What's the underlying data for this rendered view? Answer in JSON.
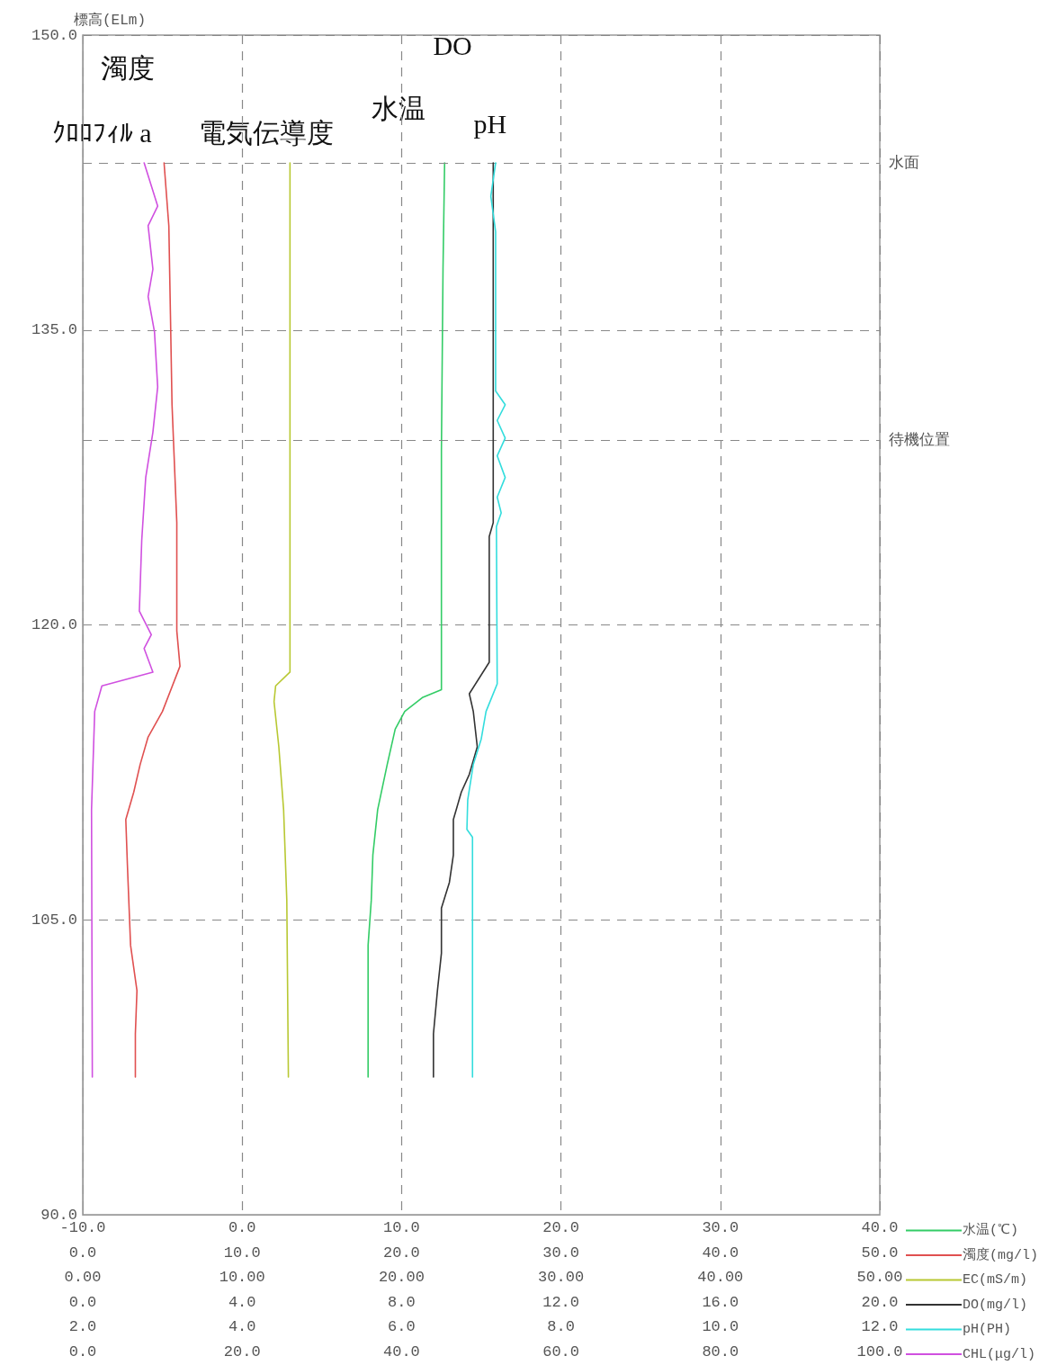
{
  "chart_data": [
    {
      "type": "line",
      "ylabel": "標高(ELm)",
      "ylim": [
        90,
        150
      ],
      "yticks": [
        {
          "value": 90,
          "label": "90.0"
        },
        {
          "value": 105,
          "label": "105.0"
        },
        {
          "value": 120,
          "label": "120.0"
        },
        {
          "value": 135,
          "label": "135.0"
        },
        {
          "value": 150,
          "label": "150.0"
        }
      ],
      "xlim": [
        -10,
        40
      ],
      "xticks": [
        {
          "value": -10,
          "label": "-10.0"
        },
        {
          "value": 0,
          "label": "0.0"
        },
        {
          "value": 10,
          "label": "10.0"
        },
        {
          "value": 20,
          "label": "20.0"
        },
        {
          "value": 30,
          "label": "30.0"
        },
        {
          "value": 40,
          "label": "40.0"
        }
      ],
      "grid": true,
      "legend": "bottom right",
      "ref_lines": [
        {
          "axis": "y",
          "value": 143.5,
          "label": "水面",
          "line_style": "dashed"
        },
        {
          "axis": "y",
          "value": 129.4,
          "label": "待機位置",
          "line_style": "dashed"
        }
      ],
      "annotations": [
        "濁度",
        "DO",
        "ｸﾛﾛﾌｨﾙ a",
        "電気伝導度",
        "水温",
        "pH"
      ],
      "series": [
        {
          "name": "水温(℃)",
          "color": "#33cc66",
          "x": [
            12.7,
            12.6,
            12.5,
            12.5,
            12.5,
            11.3,
            10.2,
            9.6,
            9.1,
            8.5,
            8.2,
            8.1,
            7.9,
            7.9
          ],
          "values": [
            143.5,
            138.1,
            128.9,
            119.7,
            116.7,
            116.3,
            115.6,
            114.7,
            112.9,
            110.6,
            108.3,
            106.0,
            103.7,
            97.0
          ]
        }
      ]
    },
    {
      "type": "line",
      "ylim": [
        90,
        150
      ],
      "tick_labels": "x",
      "legend": "bottom right",
      "xlim": [
        0,
        50
      ],
      "xticks": [
        {
          "value": 0,
          "label": "0.0"
        },
        {
          "value": 10,
          "label": "10.0"
        },
        {
          "value": 20,
          "label": "20.0"
        },
        {
          "value": 30,
          "label": "30.0"
        },
        {
          "value": 40,
          "label": "40.0"
        },
        {
          "value": 50,
          "label": "50.0"
        }
      ],
      "series": [
        {
          "name": "濁度(mg/l)",
          "color": "#e05050",
          "x": [
            5.1,
            5.4,
            5.5,
            5.6,
            5.9,
            5.9,
            6.1,
            5.0,
            4.1,
            3.6,
            3.2,
            2.7,
            2.8,
            3.0,
            3.4,
            3.3,
            3.3
          ],
          "values": [
            143.5,
            140.3,
            135.8,
            131.2,
            125.2,
            119.7,
            117.9,
            115.6,
            114.3,
            112.9,
            111.5,
            110.1,
            107.8,
            103.7,
            101.4,
            99.2,
            97.0
          ]
        }
      ]
    },
    {
      "type": "line",
      "ylim": [
        90,
        150
      ],
      "tick_labels": "x",
      "legend": "bottom right",
      "xlim": [
        0,
        50
      ],
      "xticks": [
        {
          "value": 0,
          "label": "0.00"
        },
        {
          "value": 10,
          "label": "10.00"
        },
        {
          "value": 20,
          "label": "20.00"
        },
        {
          "value": 30,
          "label": "30.00"
        },
        {
          "value": 40,
          "label": "40.00"
        },
        {
          "value": 50,
          "label": "50.00"
        }
      ],
      "series": [
        {
          "name": "EC(mS/m)",
          "color": "#b8c832",
          "x": [
            13.0,
            13.0,
            12.1,
            12.0,
            12.3,
            12.6,
            12.8,
            12.9
          ],
          "values": [
            143.5,
            117.6,
            116.9,
            116.1,
            113.8,
            110.6,
            106.0,
            97.0
          ]
        }
      ]
    },
    {
      "type": "line",
      "ylim": [
        90,
        150
      ],
      "tick_labels": "x",
      "legend": "bottom right",
      "xlim": [
        0,
        20
      ],
      "xticks": [
        {
          "value": 0,
          "label": "0.0"
        },
        {
          "value": 4,
          "label": "4.0"
        },
        {
          "value": 8,
          "label": "8.0"
        },
        {
          "value": 12,
          "label": "12.0"
        },
        {
          "value": 16,
          "label": "16.0"
        },
        {
          "value": 20,
          "label": "20.0"
        }
      ],
      "series": [
        {
          "name": "DO(mg/l)",
          "color": "#333333",
          "x": [
            10.3,
            10.3,
            10.2,
            10.2,
            9.7,
            9.8,
            9.9,
            9.7,
            9.5,
            9.3,
            9.3,
            9.2,
            9.0,
            9.0,
            8.9,
            8.8,
            8.8
          ],
          "values": [
            143.5,
            125.2,
            124.5,
            118.1,
            116.5,
            115.6,
            113.8,
            112.4,
            111.5,
            110.1,
            108.3,
            106.9,
            105.6,
            103.3,
            101.4,
            99.2,
            97.0
          ]
        }
      ]
    },
    {
      "type": "line",
      "ylim": [
        90,
        150
      ],
      "tick_labels": "x",
      "legend": "bottom right",
      "xlim": [
        2,
        12
      ],
      "xticks": [
        {
          "value": 2,
          "label": "2.0"
        },
        {
          "value": 4,
          "label": "4.0"
        },
        {
          "value": 6,
          "label": "6.0"
        },
        {
          "value": 8,
          "label": "8.0"
        },
        {
          "value": 10,
          "label": "10.0"
        },
        {
          "value": 12,
          "label": "12.0"
        }
      ],
      "series": [
        {
          "name": "pH(PH)",
          "color": "#33dddd",
          "x": [
            7.18,
            7.12,
            7.18,
            7.18,
            7.3,
            7.2,
            7.3,
            7.2,
            7.3,
            7.2,
            7.25,
            7.19,
            7.2,
            7.06,
            7.0,
            6.9,
            6.83,
            6.82,
            6.89,
            6.89
          ],
          "values": [
            143.5,
            141.8,
            140.0,
            131.9,
            131.2,
            130.4,
            129.5,
            128.6,
            127.5,
            126.5,
            125.7,
            125.0,
            117.0,
            115.6,
            114.2,
            112.9,
            111.1,
            109.6,
            109.2,
            97.0
          ]
        }
      ]
    },
    {
      "type": "line",
      "ylim": [
        90,
        150
      ],
      "tick_labels": "x",
      "legend": "bottom right",
      "xlim": [
        0,
        100
      ],
      "xticks": [
        {
          "value": 0,
          "label": "0.0"
        },
        {
          "value": 20,
          "label": "20.0"
        },
        {
          "value": 40,
          "label": "40.0"
        },
        {
          "value": 60,
          "label": "60.0"
        },
        {
          "value": 80,
          "label": "80.0"
        },
        {
          "value": 100,
          "label": "100.0"
        }
      ],
      "series": [
        {
          "name": "CHL(μg/l)",
          "color": "#d050e0",
          "x": [
            7.7,
            9.4,
            8.2,
            8.8,
            8.2,
            9.0,
            9.4,
            8.8,
            7.9,
            7.4,
            7.1,
            8.6,
            7.7,
            8.8,
            2.4,
            1.5,
            1.1,
            1.2
          ],
          "values": [
            143.5,
            141.3,
            140.3,
            138.1,
            136.7,
            134.9,
            132.1,
            129.8,
            127.5,
            124.3,
            120.7,
            119.5,
            118.8,
            117.6,
            116.9,
            115.6,
            110.6,
            97.0
          ]
        }
      ]
    }
  ]
}
